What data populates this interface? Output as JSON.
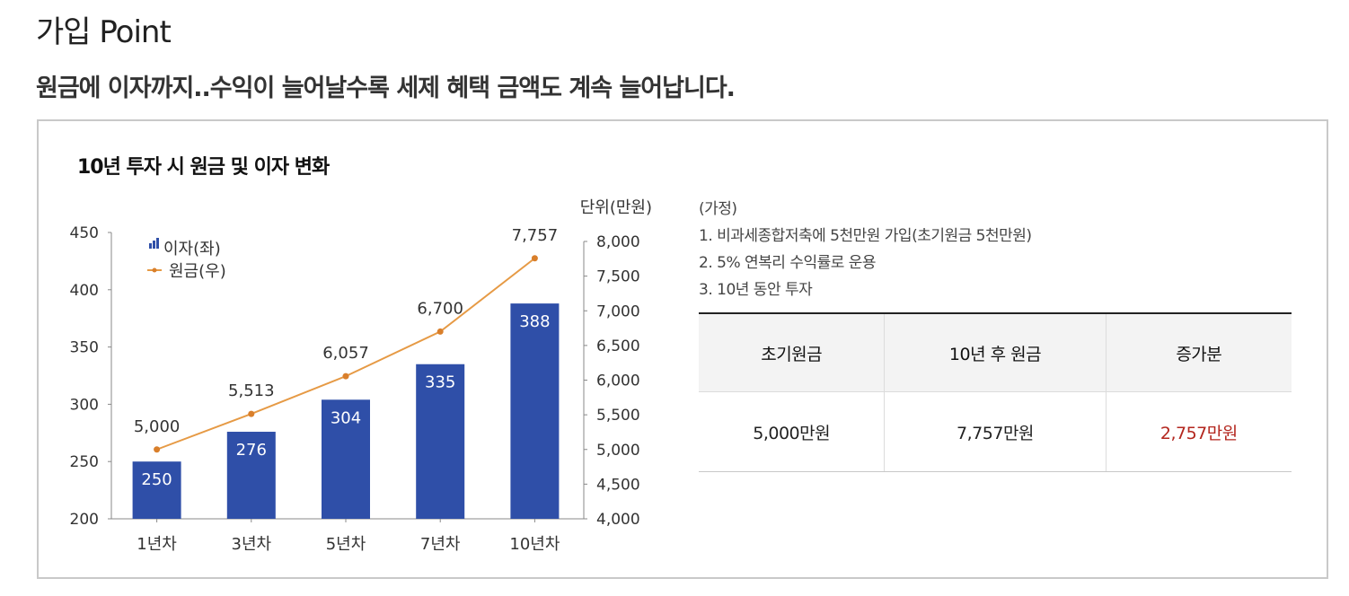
{
  "header": {
    "title": "가입 Point",
    "subtitle": "원금에 이자까지..수익이 늘어날수록 세제 혜택 금액도 계속 늘어납니다."
  },
  "chart_data": {
    "type": "bar",
    "title": "10년 투자 시 원금 및 이자 변화",
    "unit_label": "단위(만원)",
    "categories": [
      "1년차",
      "3년차",
      "5년차",
      "7년차",
      "10년차"
    ],
    "series": [
      {
        "name": "이자(좌)",
        "type": "bar",
        "axis": "left",
        "values": [
          250,
          276,
          304,
          335,
          388
        ],
        "labels": [
          "250",
          "276",
          "304",
          "335",
          "388"
        ],
        "color": "#2f4fa8"
      },
      {
        "name": "원금(우)",
        "type": "line",
        "axis": "right",
        "values": [
          5000,
          5513,
          6057,
          6700,
          7757
        ],
        "labels": [
          "5,000",
          "5,513",
          "6,057",
          "6,700",
          "7,757"
        ],
        "color": "#e69a45"
      }
    ],
    "left_axis": {
      "ylim": [
        200,
        450
      ],
      "ticks": [
        "200",
        "250",
        "300",
        "350",
        "400",
        "450"
      ]
    },
    "right_axis": {
      "ylim": [
        4000,
        8000
      ],
      "ticks": [
        "4,000",
        "4,500",
        "5,000",
        "5,500",
        "6,000",
        "6,500",
        "7,000",
        "7,500",
        "8,000"
      ]
    },
    "grid": false,
    "legend_position": "top-left"
  },
  "notes": {
    "heading": "(가정)",
    "items": [
      "1. 비과세종합저축에 5천만원 가입(초기원금 5천만원)",
      "2. 5% 연복리 수익률로 운용",
      "3. 10년 동안 투자"
    ]
  },
  "summary_table": {
    "headers": [
      "초기원금",
      "10년 후 원금",
      "증가분"
    ],
    "row": [
      "5,000만원",
      "7,757만원",
      "2,757만원"
    ]
  },
  "colors": {
    "increase_text": "#b3261e",
    "bar": "#2f4fa8",
    "line": "#e69a45"
  }
}
